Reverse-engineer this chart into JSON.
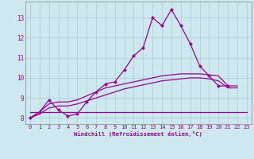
{
  "bg_color": "#cde8ee",
  "grid_color": "#aacdd6",
  "line_color": "#990099",
  "xlim": [
    -0.5,
    23.5
  ],
  "ylim": [
    7.7,
    13.8
  ],
  "xticks": [
    0,
    1,
    2,
    3,
    4,
    5,
    6,
    7,
    8,
    9,
    10,
    11,
    12,
    13,
    14,
    15,
    16,
    17,
    18,
    19,
    20,
    21,
    22,
    23
  ],
  "yticks": [
    8,
    9,
    10,
    11,
    12,
    13
  ],
  "xlabel": "Windchill (Refroidissement éolien,°C)",
  "series_main": [
    8.0,
    8.3,
    8.9,
    8.4,
    8.1,
    8.2,
    8.8,
    9.3,
    9.7,
    9.8,
    10.4,
    11.1,
    11.5,
    13.0,
    12.6,
    13.4,
    12.6,
    11.7,
    10.6,
    10.1,
    9.6,
    9.6,
    null,
    null
  ],
  "series_flat": [
    8.3,
    8.3,
    8.3,
    8.3,
    8.3,
    8.3,
    8.3,
    8.3,
    8.3,
    8.3,
    8.3,
    8.3,
    8.3,
    8.3,
    8.3,
    8.3,
    8.3,
    8.3,
    8.3,
    8.3,
    8.3,
    8.3,
    8.3,
    8.3
  ],
  "series_smooth1": [
    8.0,
    8.3,
    8.7,
    8.8,
    8.8,
    8.9,
    9.1,
    9.3,
    9.5,
    9.6,
    9.7,
    9.8,
    9.9,
    10.0,
    10.1,
    10.15,
    10.2,
    10.2,
    10.2,
    10.15,
    10.1,
    9.6,
    9.6,
    null
  ],
  "series_smooth2": [
    8.0,
    8.2,
    8.5,
    8.6,
    8.6,
    8.7,
    8.85,
    9.0,
    9.15,
    9.3,
    9.45,
    9.55,
    9.65,
    9.75,
    9.85,
    9.9,
    9.95,
    10.0,
    10.0,
    9.95,
    9.85,
    9.5,
    9.5,
    null
  ],
  "tick_fontsize": 5.0,
  "xlabel_fontsize": 5.2,
  "lw": 0.9,
  "marker_size": 2.5
}
